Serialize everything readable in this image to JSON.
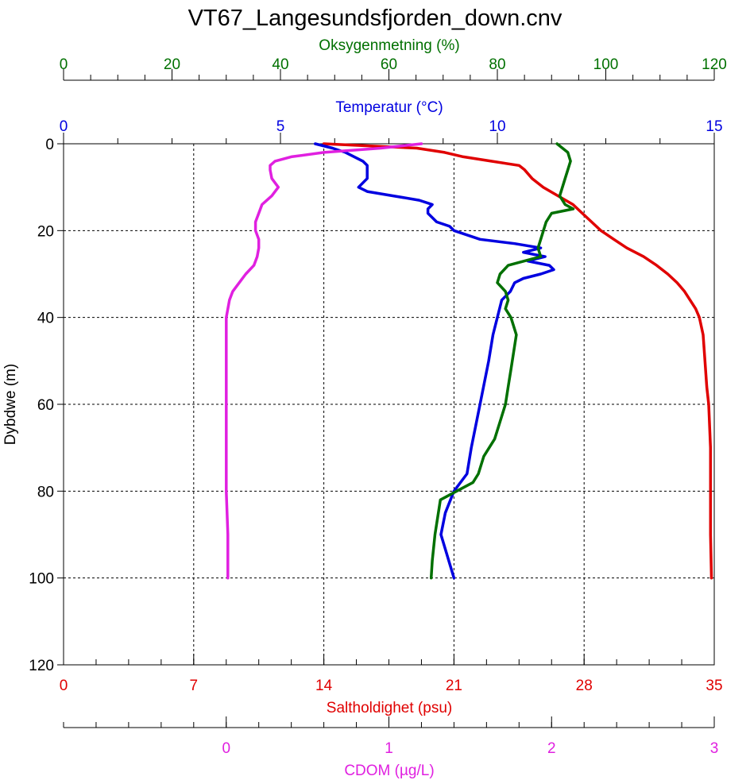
{
  "chart_data": {
    "type": "line",
    "title": "VT67_Langesundsfjorden_down.cnv",
    "grid": true,
    "depth_axis": {
      "label": "Dybdwe (m)",
      "range": [
        0,
        120
      ],
      "inverted": true,
      "ticks": [
        "0",
        "20",
        "40",
        "60",
        "80",
        "100",
        "120"
      ]
    },
    "axes": {
      "oxygen": {
        "label": "Oksygenmetning (%)",
        "range": [
          0,
          120
        ],
        "color": "#007000",
        "ticks": [
          "0",
          "20",
          "40",
          "60",
          "80",
          "100",
          "120"
        ]
      },
      "temperature": {
        "label": "Temperatur (°C)",
        "range": [
          0,
          15
        ],
        "color": "#0000e0",
        "ticks": [
          "0",
          "5",
          "10",
          "15"
        ]
      },
      "salinity": {
        "label": "Saltholdighet (psu)",
        "range": [
          0,
          35
        ],
        "color": "#e00000",
        "ticks": [
          "0",
          "7",
          "14",
          "21",
          "28",
          "35"
        ]
      },
      "cdom": {
        "label": "CDOM (µg/L)",
        "range": [
          -1,
          3
        ],
        "color": "#e020e0",
        "ticks": [
          "0",
          "1",
          "2",
          "3"
        ]
      }
    },
    "series": [
      {
        "name": "Saltholdighet (psu)",
        "axis": "salinity",
        "color": "#e00000",
        "depth": [
          0,
          0.5,
          1,
          2,
          3,
          4,
          5,
          6,
          8,
          10,
          12,
          14,
          16,
          18,
          20,
          22,
          24,
          26,
          28,
          30,
          32,
          34,
          36,
          38,
          40,
          44,
          50,
          56,
          60,
          70,
          80,
          90,
          100
        ],
        "values": [
          14.0,
          16.5,
          19.0,
          20.5,
          21.5,
          23.0,
          24.5,
          24.8,
          25.2,
          25.8,
          26.6,
          27.4,
          27.9,
          28.4,
          28.9,
          29.6,
          30.3,
          31.2,
          31.9,
          32.5,
          33.0,
          33.4,
          33.7,
          34.0,
          34.2,
          34.4,
          34.5,
          34.6,
          34.7,
          34.8,
          34.8,
          34.8,
          34.85
        ]
      },
      {
        "name": "Temperatur (°C)",
        "axis": "temperature",
        "color": "#0000e0",
        "depth": [
          0,
          1,
          2,
          3,
          4,
          5,
          6,
          8,
          10,
          11,
          12,
          13,
          14,
          15,
          16,
          18,
          19,
          20,
          22,
          23,
          24,
          25,
          26,
          27,
          28,
          29,
          30,
          31,
          32,
          34,
          36,
          40,
          44,
          50,
          60,
          70,
          76,
          80,
          85,
          90,
          100
        ],
        "values": [
          5.8,
          6.2,
          6.5,
          6.7,
          6.9,
          7.0,
          7.0,
          7.0,
          6.8,
          7.0,
          7.6,
          8.2,
          8.5,
          8.4,
          8.4,
          8.6,
          8.9,
          9.0,
          9.6,
          10.4,
          11.0,
          10.6,
          11.1,
          10.7,
          11.2,
          11.3,
          11.0,
          10.6,
          10.4,
          10.3,
          10.1,
          10.0,
          9.9,
          9.8,
          9.6,
          9.4,
          9.3,
          9.0,
          8.8,
          8.7,
          9.0
        ]
      },
      {
        "name": "Oksygenmetning (%)",
        "axis": "oxygen",
        "color": "#007000",
        "depth": [
          0,
          2,
          4,
          6,
          8,
          10,
          12,
          14,
          15,
          16,
          18,
          20,
          22,
          24,
          26,
          28,
          30,
          32,
          34,
          36,
          38,
          40,
          44,
          48,
          52,
          56,
          60,
          64,
          68,
          72,
          76,
          78,
          80,
          82,
          86,
          90,
          96,
          100
        ],
        "values": [
          91.0,
          93.0,
          93.5,
          93.0,
          92.5,
          92.0,
          91.5,
          92.5,
          94.0,
          90.0,
          89.0,
          88.5,
          88.0,
          87.5,
          88.0,
          82.0,
          80.5,
          80.0,
          81.5,
          82.0,
          81.5,
          82.5,
          83.5,
          83.0,
          82.5,
          82.0,
          81.5,
          80.5,
          79.5,
          77.5,
          76.5,
          75.5,
          72.5,
          69.5,
          69.0,
          68.5,
          68.0,
          67.8
        ]
      },
      {
        "name": "CDOM (µg/L)",
        "axis": "cdom",
        "color": "#e020e0",
        "depth": [
          0,
          1,
          2,
          3,
          4,
          5,
          6,
          8,
          10,
          12,
          14,
          16,
          18,
          20,
          22,
          24,
          26,
          28,
          30,
          32,
          34,
          36,
          40,
          50,
          60,
          70,
          80,
          90,
          100
        ],
        "values": [
          1.2,
          0.95,
          0.6,
          0.4,
          0.3,
          0.27,
          0.27,
          0.28,
          0.32,
          0.28,
          0.22,
          0.2,
          0.18,
          0.18,
          0.2,
          0.2,
          0.19,
          0.17,
          0.12,
          0.08,
          0.04,
          0.02,
          0.0,
          0.0,
          0.0,
          0.0,
          0.0,
          0.01,
          0.01
        ]
      }
    ]
  }
}
